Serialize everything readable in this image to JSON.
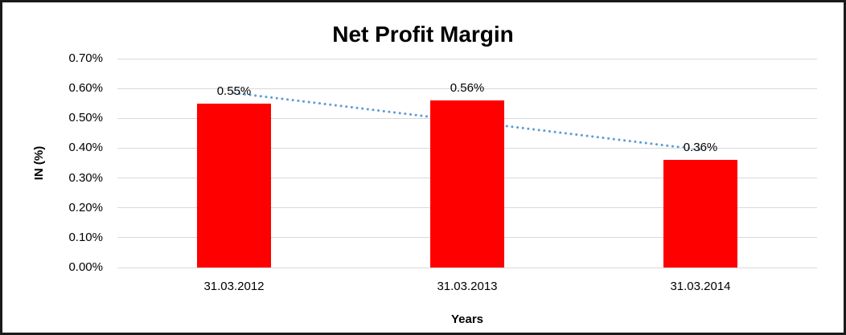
{
  "chart_data": {
    "type": "bar",
    "title": "Net Profit Margin",
    "xlabel": "Years",
    "ylabel": "IN (%)",
    "categories": [
      "31.03.2012",
      "31.03.2013",
      "31.03.2014"
    ],
    "values": [
      0.55,
      0.56,
      0.36
    ],
    "data_labels": [
      "0.55%",
      "0.56%",
      "0.36%"
    ],
    "ylim": [
      0,
      0.7
    ],
    "yticks": {
      "values": [
        0.7,
        0.6,
        0.5,
        0.4,
        0.3,
        0.2,
        0.1,
        0.0
      ],
      "labels": [
        "0.70%",
        "0.60%",
        "0.50%",
        "0.40%",
        "0.30%",
        "0.20%",
        "0.10%",
        "0.00%"
      ]
    },
    "grid": "horizontal",
    "legend": "none",
    "trendline": {
      "type": "linear",
      "style": "dotted",
      "color": "#5b9bd5"
    },
    "colors": {
      "bar": "#ff0000",
      "gridline": "#d9d9d9",
      "text": "#000000",
      "frame_border": "#1a1a1a",
      "background": "#ffffff"
    }
  }
}
